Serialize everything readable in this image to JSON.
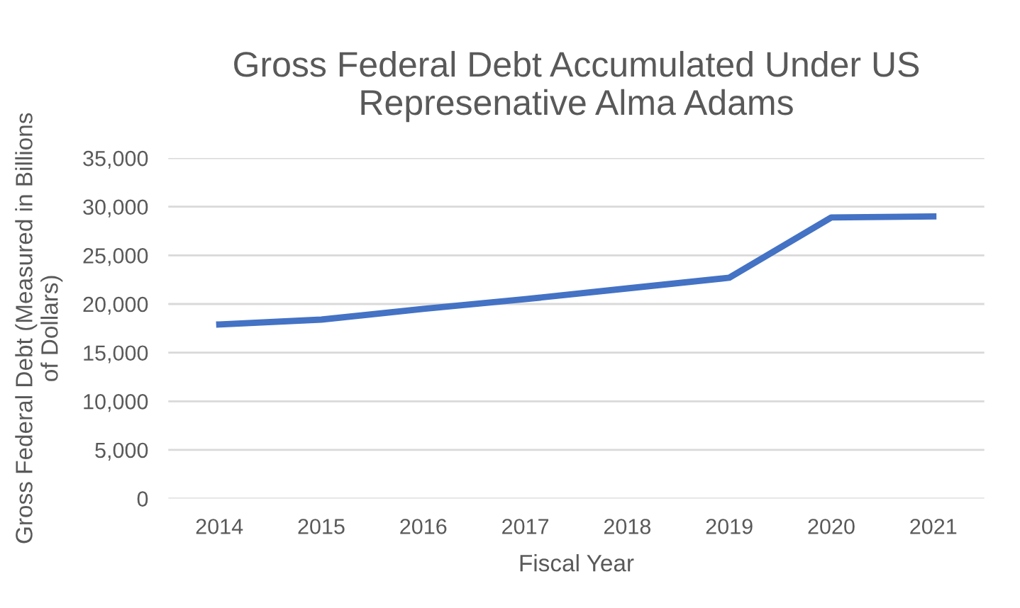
{
  "chart_data": {
    "type": "line",
    "title": "Gross Federal Debt Accumulated Under US\nRepresenative Alma Adams",
    "xlabel": "Fiscal Year",
    "ylabel": "Gross Federal Debt (Measured in Billions\nof Dollars)",
    "categories": [
      "2014",
      "2015",
      "2016",
      "2017",
      "2018",
      "2019",
      "2020",
      "2021"
    ],
    "series": [
      {
        "color": "#4472c4",
        "values": [
          17900,
          18400,
          19500,
          20500,
          21600,
          22700,
          28900,
          29000
        ]
      }
    ],
    "ylim": [
      0,
      35000
    ],
    "yticks": [
      {
        "value": 0,
        "label": "0"
      },
      {
        "value": 5000,
        "label": "5,000"
      },
      {
        "value": 10000,
        "label": "10,000"
      },
      {
        "value": 15000,
        "label": "15,000"
      },
      {
        "value": 20000,
        "label": "20,000"
      },
      {
        "value": 25000,
        "label": "25,000"
      },
      {
        "value": 30000,
        "label": "30,000"
      },
      {
        "value": 35000,
        "label": "35,000"
      }
    ],
    "grid": "y",
    "marker": "none",
    "line_style": "solid"
  }
}
